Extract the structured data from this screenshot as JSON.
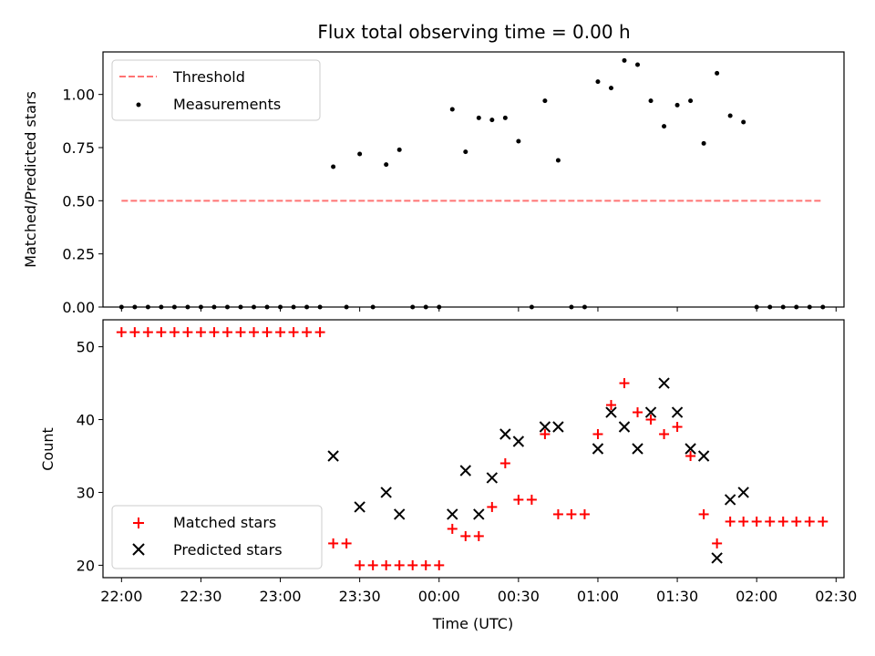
{
  "title": "Flux total observing time = 0.00 h",
  "colors": {
    "threshold": "#ff7373",
    "measurement": "#000000",
    "matched": "#ff0000",
    "predicted": "#000000"
  },
  "chart_data": [
    {
      "type": "scatter",
      "ylabel": "Matched/Predicted stars",
      "xlabel": "",
      "ylim": [
        0,
        1.2
      ],
      "xlim": [
        "21:53",
        "02:33"
      ],
      "yticks": [
        "0.00",
        "0.25",
        "0.50",
        "0.75",
        "1.00"
      ],
      "grid": false,
      "legend": {
        "position": "upper-left",
        "entries": [
          "Threshold",
          "Measurements"
        ]
      },
      "series": [
        {
          "name": "Threshold",
          "style": "dashed-line",
          "x": [
            "22:00",
            "02:25"
          ],
          "y": [
            0.5,
            0.5
          ]
        },
        {
          "name": "Measurements",
          "style": "dot",
          "x": [
            "22:00",
            "22:05",
            "22:10",
            "22:15",
            "22:20",
            "22:25",
            "22:30",
            "22:35",
            "22:40",
            "22:45",
            "22:50",
            "22:55",
            "23:00",
            "23:05",
            "23:10",
            "23:15",
            "23:20",
            "23:25",
            "23:30",
            "23:35",
            "23:40",
            "23:45",
            "23:50",
            "23:55",
            "00:00",
            "00:05",
            "00:10",
            "00:15",
            "00:20",
            "00:25",
            "00:30",
            "00:35",
            "00:40",
            "00:45",
            "00:50",
            "00:55",
            "01:00",
            "01:05",
            "01:10",
            "01:15",
            "01:20",
            "01:25",
            "01:30",
            "01:35",
            "01:40",
            "01:45",
            "01:50",
            "01:55",
            "02:00",
            "02:05",
            "02:10",
            "02:15",
            "02:20",
            "02:25"
          ],
          "y": [
            0,
            0,
            0,
            0,
            0,
            0,
            0,
            0,
            0,
            0,
            0,
            0,
            0,
            0,
            0,
            0,
            0.66,
            0,
            0.72,
            0,
            0.67,
            0.74,
            0,
            0,
            0,
            0.93,
            0.73,
            0.89,
            0.88,
            0.89,
            0.78,
            0,
            0.97,
            0.69,
            0,
            0,
            1.06,
            1.03,
            1.16,
            1.14,
            0.97,
            0.85,
            0.95,
            0.97,
            0.77,
            1.1,
            0.9,
            0.87,
            0,
            0,
            0,
            0,
            0,
            0
          ]
        }
      ]
    },
    {
      "type": "scatter",
      "ylabel": "Count",
      "xlabel": "Time (UTC)",
      "ylim": [
        18.3,
        53.7
      ],
      "xlim": [
        "21:53",
        "02:33"
      ],
      "yticks": [
        "20",
        "30",
        "40",
        "50"
      ],
      "xticks": [
        "22:00",
        "22:30",
        "23:00",
        "23:30",
        "00:00",
        "00:30",
        "01:00",
        "01:30",
        "02:00",
        "02:30"
      ],
      "grid": false,
      "legend": {
        "position": "lower-left",
        "entries": [
          "Matched stars",
          "Predicted stars"
        ]
      },
      "series": [
        {
          "name": "Matched stars",
          "marker": "plus",
          "x": [
            "22:00",
            "22:05",
            "22:10",
            "22:15",
            "22:20",
            "22:25",
            "22:30",
            "22:35",
            "22:40",
            "22:45",
            "22:50",
            "22:55",
            "23:00",
            "23:05",
            "23:10",
            "23:15",
            "23:20",
            "23:25",
            "23:30",
            "23:35",
            "23:40",
            "23:45",
            "23:50",
            "23:55",
            "00:00",
            "00:05",
            "00:10",
            "00:15",
            "00:20",
            "00:25",
            "00:30",
            "00:35",
            "00:40",
            "00:45",
            "00:50",
            "00:55",
            "01:00",
            "01:05",
            "01:10",
            "01:15",
            "01:20",
            "01:25",
            "01:30",
            "01:35",
            "01:40",
            "01:45",
            "01:50",
            "01:55",
            "02:00",
            "02:05",
            "02:10",
            "02:15",
            "02:20",
            "02:25"
          ],
          "y": [
            52,
            52,
            52,
            52,
            52,
            52,
            52,
            52,
            52,
            52,
            52,
            52,
            52,
            52,
            52,
            52,
            23,
            23,
            20,
            20,
            20,
            20,
            20,
            20,
            20,
            25,
            24,
            24,
            28,
            34,
            29,
            29,
            38,
            27,
            27,
            27,
            38,
            42,
            45,
            41,
            40,
            38,
            39,
            35,
            27,
            23,
            26,
            26,
            26,
            26,
            26,
            26,
            26,
            26
          ]
        },
        {
          "name": "Predicted stars",
          "marker": "x",
          "x": [
            "23:20",
            "23:30",
            "23:40",
            "23:45",
            "00:05",
            "00:10",
            "00:15",
            "00:20",
            "00:25",
            "00:30",
            "00:40",
            "00:45",
            "01:00",
            "01:05",
            "01:10",
            "01:15",
            "01:20",
            "01:25",
            "01:30",
            "01:35",
            "01:40",
            "01:45",
            "01:50",
            "01:55"
          ],
          "y": [
            35,
            28,
            30,
            27,
            27,
            33,
            27,
            32,
            38,
            37,
            39,
            39,
            36,
            41,
            39,
            36,
            41,
            45,
            41,
            36,
            35,
            21,
            29,
            30
          ]
        }
      ]
    }
  ]
}
